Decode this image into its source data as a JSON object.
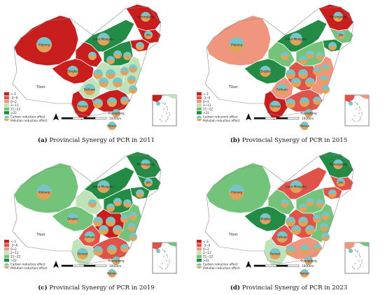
{
  "palette": {
    "c1": "#c81e1e",
    "c2": "#e0534a",
    "c3": "#f0957e",
    "c4": "#bfe2bb",
    "c5": "#74c37a",
    "c6": "#238b45",
    "carbon": "#78c4c6",
    "pollution": "#e2a25a"
  },
  "legend": {
    "items": [
      "<-3",
      "-3~0",
      "0~2",
      "2~11",
      "11~22",
      ">22"
    ],
    "carbon_label": "Carbon reduction effect",
    "pollution_label": "Pollution reduction effect"
  },
  "map_labels": {
    "tibet": "Tibet",
    "xinjiang": "Xinjiang",
    "qinghai": "Qinghai",
    "inner_mongolia": "Inner Mongolia",
    "heilongjiang": "Heilongjiang",
    "jilin": "Jilin",
    "sichuan": "Sichuan",
    "yunnan": "Yunnan",
    "guangdong": "Guangdong",
    "hainan": "Hainan",
    "scale": "1000km"
  },
  "panels": [
    {
      "letter": "(a)",
      "caption": "Provincial Synergy of PCR in 2011",
      "fills": {
        "xinjiang": "c1",
        "tibet": "white",
        "qinghai": "c1",
        "gansu": "c1",
        "inner_mongolia": "c6",
        "heilongjiang": "c1",
        "jilin": "c1",
        "liaoning": "c1",
        "north_china": "c6",
        "central": "c4",
        "sichuan": "c4",
        "yunnan": "c1",
        "south": "c1",
        "east": "c4"
      }
    },
    {
      "letter": "(b)",
      "caption": "Provincial Synergy of PCR in 2015",
      "fills": {
        "xinjiang": "c3",
        "tibet": "white",
        "qinghai": "c6",
        "gansu": "c5",
        "inner_mongolia": "c6",
        "heilongjiang": "c1",
        "jilin": "c5",
        "liaoning": "c6",
        "north_china": "c5",
        "central": "c2",
        "sichuan": "c3",
        "yunnan": "c1",
        "south": "c2",
        "east": "c3"
      }
    },
    {
      "letter": "(c)",
      "caption": "Provincial Synergy of PCR in 2019",
      "fills": {
        "xinjiang": "c5",
        "tibet": "white",
        "qinghai": "c5",
        "gansu": "c4",
        "inner_mongolia": "c6",
        "heilongjiang": "c6",
        "jilin": "c6",
        "liaoning": "c6",
        "north_china": "c6",
        "central": "c1",
        "sichuan": "c2",
        "yunnan": "c4",
        "south": "c2",
        "east": "c5"
      }
    },
    {
      "letter": "(d)",
      "caption": "Provincial Synergy of PCR in 2023",
      "fills": {
        "xinjiang": "c5",
        "tibet": "white",
        "qinghai": "c6",
        "gansu": "c5",
        "inner_mongolia": "c2",
        "heilongjiang": "c6",
        "jilin": "c2",
        "liaoning": "c2",
        "north_china": "c5",
        "central": "c2",
        "sichuan": "c2",
        "yunnan": "c4",
        "south": "c3",
        "east": "c5"
      }
    }
  ]
}
